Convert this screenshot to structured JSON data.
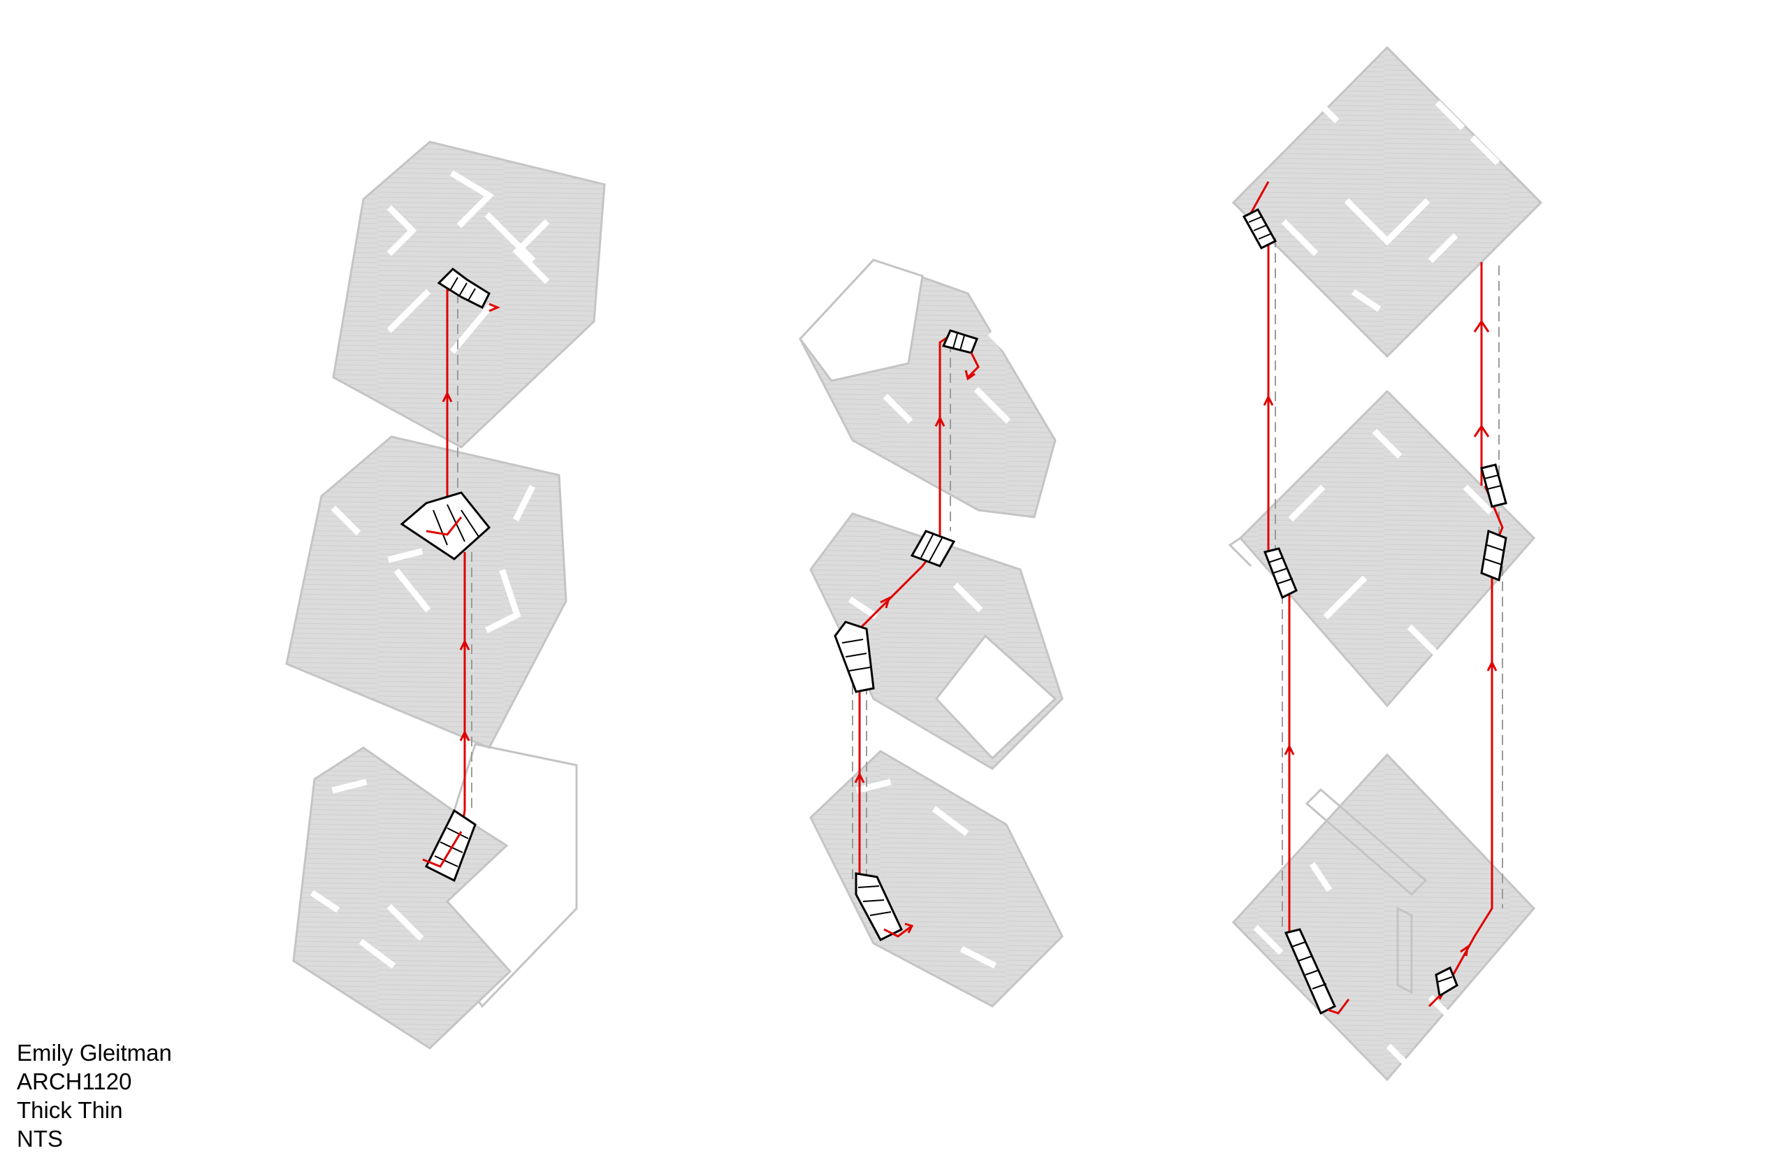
{
  "caption": {
    "name": "Emily Gleitman",
    "course": "ARCH1120",
    "project": "Thick Thin",
    "scale": "NTS"
  },
  "colors": {
    "floor": "#dcdcdc",
    "outline": "#c4c4c4",
    "circulation_path": "#e00000",
    "guide_line": "#9a9a9a",
    "stair": "#000000"
  },
  "diagrams": [
    {
      "id": "scheme-1",
      "levels": 3
    },
    {
      "id": "scheme-2",
      "levels": 3
    },
    {
      "id": "scheme-3",
      "levels": 3
    }
  ]
}
